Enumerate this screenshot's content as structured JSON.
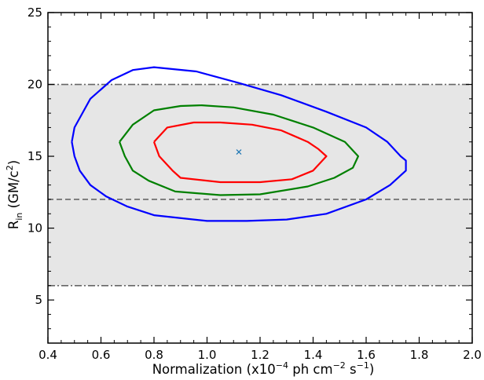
{
  "chart_data": {
    "type": "contour",
    "xlabel": {
      "main": "Normalization (x10",
      "exp1": "−4",
      "mid": " ph cm",
      "exp2": "−2",
      "mid2": " s",
      "exp3": "−1",
      "tail": ")"
    },
    "ylabel": {
      "main": "R",
      "sub": "in",
      "mid": " (GM/c",
      "sup": "2",
      "tail": ")"
    },
    "xlim": [
      0.4,
      2.0
    ],
    "ylim": [
      2,
      25
    ],
    "xticks": [
      0.4,
      0.6,
      0.8,
      1.0,
      1.2,
      1.4,
      1.6,
      1.8,
      2.0
    ],
    "xtick_labels": [
      "0.4",
      "0.6",
      "0.8",
      "1.0",
      "1.2",
      "1.4",
      "1.6",
      "1.8",
      "2.0"
    ],
    "yticks": [
      5,
      10,
      15,
      20,
      25
    ],
    "ytick_labels": [
      "5",
      "10",
      "15",
      "20",
      "25"
    ],
    "shaded_band": {
      "y0": 6,
      "y1": 20,
      "color": "#e6e6e6"
    },
    "reference_lines": [
      {
        "y": 20,
        "style": "dashdot",
        "color": "#666666"
      },
      {
        "y": 12,
        "style": "dashed",
        "color": "#666666"
      },
      {
        "y": 6,
        "style": "dashdot",
        "color": "#666666"
      }
    ],
    "best_fit": {
      "x": 1.12,
      "y": 15.3,
      "marker": "x",
      "color": "#1f77b4"
    },
    "contours": [
      {
        "color": "#ff0000",
        "points": [
          [
            0.8,
            16.0
          ],
          [
            0.85,
            17.0
          ],
          [
            0.95,
            17.35
          ],
          [
            1.05,
            17.35
          ],
          [
            1.17,
            17.2
          ],
          [
            1.28,
            16.8
          ],
          [
            1.38,
            16.0
          ],
          [
            1.42,
            15.5
          ],
          [
            1.45,
            15.0
          ],
          [
            1.4,
            14.0
          ],
          [
            1.32,
            13.4
          ],
          [
            1.2,
            13.2
          ],
          [
            1.05,
            13.2
          ],
          [
            0.9,
            13.5
          ],
          [
            0.87,
            14.0
          ],
          [
            0.82,
            15.0
          ],
          [
            0.8,
            16.0
          ]
        ]
      },
      {
        "color": "#008000",
        "points": [
          [
            0.67,
            16.0
          ],
          [
            0.72,
            17.2
          ],
          [
            0.8,
            18.2
          ],
          [
            0.9,
            18.5
          ],
          [
            0.98,
            18.55
          ],
          [
            1.1,
            18.4
          ],
          [
            1.25,
            17.9
          ],
          [
            1.4,
            17.0
          ],
          [
            1.52,
            16.0
          ],
          [
            1.57,
            15.0
          ],
          [
            1.55,
            14.2
          ],
          [
            1.48,
            13.5
          ],
          [
            1.38,
            12.9
          ],
          [
            1.2,
            12.35
          ],
          [
            1.05,
            12.3
          ],
          [
            0.88,
            12.55
          ],
          [
            0.78,
            13.3
          ],
          [
            0.72,
            14.0
          ],
          [
            0.69,
            15.0
          ],
          [
            0.67,
            16.0
          ]
        ]
      },
      {
        "color": "#0000ff",
        "points": [
          [
            0.49,
            16.0
          ],
          [
            0.5,
            17.0
          ],
          [
            0.53,
            18.0
          ],
          [
            0.56,
            19.0
          ],
          [
            0.64,
            20.3
          ],
          [
            0.72,
            21.0
          ],
          [
            0.8,
            21.2
          ],
          [
            0.96,
            20.9
          ],
          [
            1.12,
            20.1
          ],
          [
            1.28,
            19.25
          ],
          [
            1.45,
            18.1
          ],
          [
            1.6,
            17.0
          ],
          [
            1.68,
            16.0
          ],
          [
            1.73,
            15.0
          ],
          [
            1.75,
            14.7
          ],
          [
            1.75,
            14.0
          ],
          [
            1.69,
            13.0
          ],
          [
            1.6,
            12.0
          ],
          [
            1.45,
            11.0
          ],
          [
            1.3,
            10.6
          ],
          [
            1.15,
            10.5
          ],
          [
            1.0,
            10.5
          ],
          [
            0.8,
            10.9
          ],
          [
            0.7,
            11.5
          ],
          [
            0.62,
            12.2
          ],
          [
            0.56,
            13.0
          ],
          [
            0.52,
            14.0
          ],
          [
            0.5,
            15.0
          ],
          [
            0.49,
            16.0
          ]
        ]
      }
    ]
  }
}
